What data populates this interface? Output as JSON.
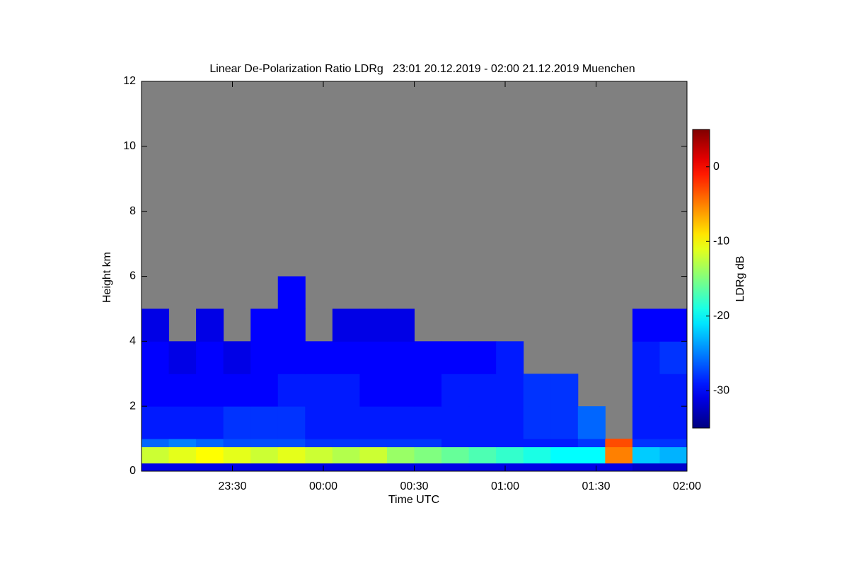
{
  "chart_data": {
    "type": "heatmap",
    "title": "Linear De-Polarization Ratio LDRg   23:01 20.12.2019 - 02:00 21.12.2019 Muenchen",
    "x_label": "Time UTC",
    "y_label": "Height km",
    "colorbar_label": "LDRg dB",
    "colormap": "jet",
    "background": "#808080",
    "xlim": [
      -1,
      2
    ],
    "xticks": [
      {
        "value": -0.5,
        "label": "23:30"
      },
      {
        "value": 0,
        "label": "00:00"
      },
      {
        "value": 0.5,
        "label": "00:30"
      },
      {
        "value": 1,
        "label": "01:00"
      },
      {
        "value": 1.5,
        "label": "01:30"
      },
      {
        "value": 2,
        "label": "02:00"
      }
    ],
    "ylim": [
      0,
      12
    ],
    "yticks": [
      0,
      2,
      4,
      6,
      8,
      10,
      12
    ],
    "clim": [
      -35,
      5
    ],
    "cticks": [
      0,
      -10,
      -20,
      -30
    ],
    "x_edges": [
      -1,
      -0.85,
      -0.7,
      -0.55,
      -0.4,
      -0.25,
      -0.1,
      0.05,
      0.2,
      0.35,
      0.5,
      0.65,
      0.8,
      0.95,
      1.1,
      1.25,
      1.4,
      1.55,
      1.7,
      1.85,
      2.0
    ],
    "y_edges": [
      0,
      0.25,
      0.75,
      1,
      2,
      3,
      4,
      5,
      6
    ],
    "z": [
      [
        -31,
        -31,
        -31,
        -31,
        -31,
        -31,
        -31,
        -31,
        -31,
        -31,
        -31,
        -31,
        -31,
        -31,
        -31,
        -31,
        -31,
        -31,
        -32,
        -32
      ],
      [
        -12,
        -11,
        -10,
        -11,
        -12,
        -11,
        -12,
        -13,
        -12,
        -14,
        -15,
        -16,
        -17,
        -18,
        -19,
        -20,
        -20,
        -5,
        -22,
        -23
      ],
      [
        -26,
        -25,
        -26,
        -27,
        -27,
        -27,
        -28,
        -28,
        -28,
        -28,
        -28,
        -29,
        -29,
        -29,
        -29,
        -29,
        -28,
        -3,
        -28,
        -28
      ],
      [
        -29,
        -29,
        -29,
        -28,
        -28,
        -28,
        -29,
        -29,
        -29,
        -29,
        -29,
        -29,
        -29,
        -29,
        -28,
        -28,
        -26,
        null,
        -29,
        -29
      ],
      [
        -30,
        -30,
        -30,
        -30,
        -30,
        -29,
        -29,
        -29,
        -30,
        -30,
        -30,
        -29,
        -29,
        -29,
        -28,
        -28,
        null,
        null,
        -29,
        -29
      ],
      [
        -30,
        -31,
        -30,
        -31,
        -30,
        -30,
        -30,
        -30,
        -30,
        -30,
        -30,
        -30,
        -30,
        -29,
        null,
        null,
        null,
        null,
        -29,
        -28
      ],
      [
        -31,
        null,
        -31,
        null,
        -30,
        -30,
        null,
        -31,
        -31,
        -31,
        null,
        null,
        null,
        null,
        null,
        null,
        null,
        null,
        -30,
        -30
      ],
      [
        null,
        null,
        null,
        null,
        null,
        -30,
        null,
        null,
        null,
        null,
        null,
        null,
        null,
        null,
        null,
        null,
        null,
        null,
        null,
        null
      ]
    ]
  }
}
